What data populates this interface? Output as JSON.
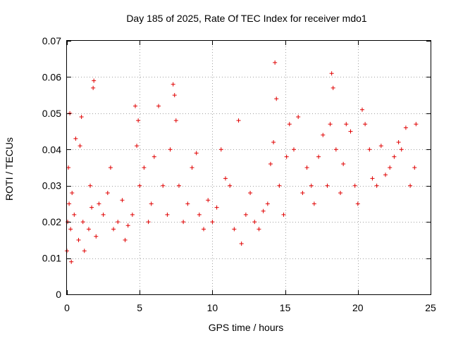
{
  "chart_data": {
    "type": "scatter",
    "title": "Day 185 of 2025, Rate Of TEC Index for receiver mdo1",
    "xlabel": "GPS time / hours",
    "ylabel": "ROTI / TECUs",
    "xlim": [
      0,
      25
    ],
    "ylim": [
      0,
      0.07
    ],
    "x_ticks": [
      0,
      5,
      10,
      15,
      20,
      25
    ],
    "x_tick_labels": [
      "0",
      "5",
      "10",
      "15",
      "20",
      "25"
    ],
    "y_ticks": [
      0,
      0.01,
      0.02,
      0.03,
      0.04,
      0.05,
      0.06,
      0.07
    ],
    "y_tick_labels": [
      "0",
      "0.01",
      "0.02",
      "0.03",
      "0.04",
      "0.05",
      "0.06",
      "0.07"
    ],
    "grid": true,
    "marker": "plus",
    "color": "#e00000",
    "series": [
      {
        "name": "ROTI",
        "x": [
          0.0,
          0.05,
          0.1,
          0.15,
          0.2,
          0.25,
          0.3,
          0.35,
          0.5,
          0.6,
          0.8,
          0.9,
          1.0,
          1.1,
          1.2,
          1.5,
          1.6,
          1.7,
          1.8,
          1.85,
          2.0,
          2.2,
          2.5,
          2.8,
          3.0,
          3.2,
          3.5,
          3.8,
          4.0,
          4.2,
          4.5,
          4.7,
          4.8,
          4.9,
          5.0,
          5.3,
          5.6,
          5.8,
          6.0,
          6.3,
          6.6,
          6.9,
          7.1,
          7.3,
          7.4,
          7.5,
          7.7,
          8.0,
          8.3,
          8.6,
          8.9,
          9.1,
          9.4,
          9.7,
          10.0,
          10.3,
          10.6,
          10.9,
          11.2,
          11.5,
          11.8,
          12.0,
          12.3,
          12.6,
          12.9,
          13.2,
          13.5,
          13.8,
          14.0,
          14.2,
          14.3,
          14.4,
          14.6,
          14.9,
          15.1,
          15.3,
          15.6,
          15.9,
          16.2,
          16.5,
          16.8,
          17.0,
          17.3,
          17.6,
          17.9,
          18.1,
          18.2,
          18.3,
          18.5,
          18.8,
          19.0,
          19.2,
          19.5,
          19.8,
          20.0,
          20.3,
          20.5,
          20.8,
          21.0,
          21.3,
          21.6,
          21.9,
          22.2,
          22.5,
          22.8,
          23.0,
          23.3,
          23.6,
          23.9,
          24.0
        ],
        "y": [
          0.012,
          0.02,
          0.035,
          0.025,
          0.05,
          0.018,
          0.009,
          0.028,
          0.022,
          0.043,
          0.015,
          0.041,
          0.049,
          0.02,
          0.012,
          0.018,
          0.03,
          0.024,
          0.057,
          0.059,
          0.016,
          0.025,
          0.022,
          0.028,
          0.035,
          0.018,
          0.02,
          0.026,
          0.015,
          0.019,
          0.022,
          0.052,
          0.041,
          0.048,
          0.03,
          0.035,
          0.02,
          0.025,
          0.038,
          0.052,
          0.03,
          0.022,
          0.04,
          0.058,
          0.055,
          0.048,
          0.03,
          0.02,
          0.025,
          0.035,
          0.039,
          0.022,
          0.018,
          0.026,
          0.02,
          0.024,
          0.04,
          0.032,
          0.03,
          0.018,
          0.048,
          0.014,
          0.022,
          0.028,
          0.02,
          0.018,
          0.023,
          0.025,
          0.036,
          0.042,
          0.064,
          0.054,
          0.03,
          0.022,
          0.038,
          0.047,
          0.04,
          0.049,
          0.028,
          0.035,
          0.03,
          0.025,
          0.038,
          0.044,
          0.03,
          0.047,
          0.061,
          0.057,
          0.04,
          0.028,
          0.036,
          0.047,
          0.045,
          0.03,
          0.025,
          0.051,
          0.047,
          0.04,
          0.032,
          0.03,
          0.041,
          0.033,
          0.035,
          0.038,
          0.042,
          0.04,
          0.046,
          0.03,
          0.035,
          0.047
        ]
      }
    ]
  }
}
